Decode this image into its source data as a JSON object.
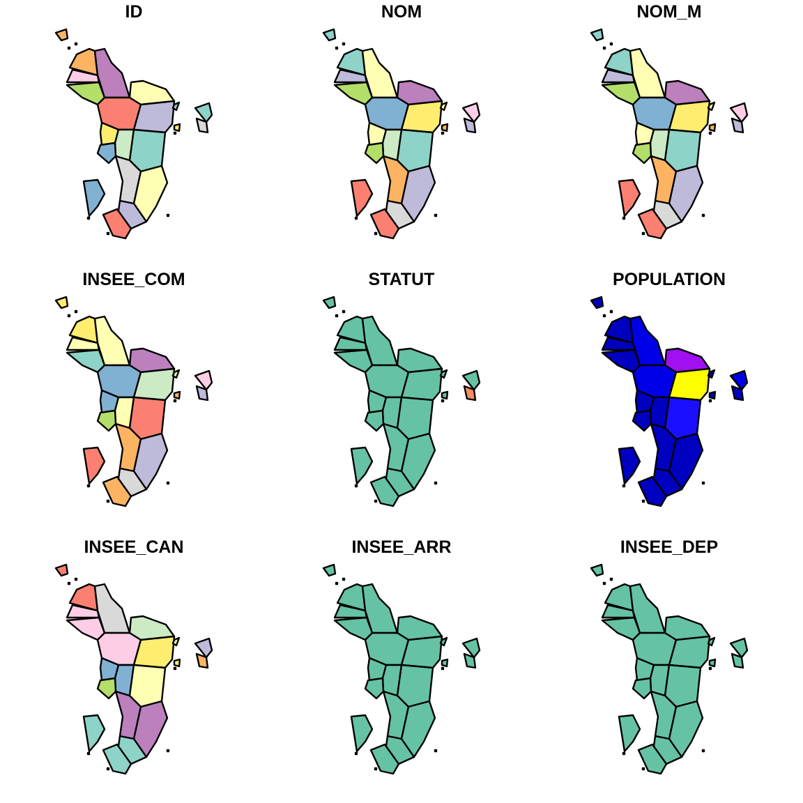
{
  "figure": {
    "panels": [
      {
        "title": "ID",
        "palette": "set3"
      },
      {
        "title": "NOM",
        "palette": "set3"
      },
      {
        "title": "NOM_M",
        "palette": "set3"
      },
      {
        "title": "INSEE_COM",
        "palette": "set3"
      },
      {
        "title": "STATUT",
        "palette": "statut"
      },
      {
        "title": "POPULATION",
        "palette": "population"
      },
      {
        "title": "INSEE_CAN",
        "palette": "set3"
      },
      {
        "title": "INSEE_ARR",
        "palette": "single"
      },
      {
        "title": "INSEE_DEP",
        "palette": "single"
      }
    ]
  },
  "colors": {
    "fill_default": "#66C2A5",
    "statut_other": "#FC8D62",
    "outline": "#000000",
    "set3": [
      "#8DD3C7",
      "#FFFFB3",
      "#BEBADA",
      "#FB8072",
      "#80B1D3",
      "#FDB462",
      "#B3DE69",
      "#FCCDE5",
      "#D9D9D9",
      "#BC80BD",
      "#CCEBC5",
      "#FFED6F"
    ],
    "population": [
      "#0000C0",
      "#0000E6",
      "#1A10FF",
      "#A010F0",
      "#FFFF00"
    ]
  }
}
